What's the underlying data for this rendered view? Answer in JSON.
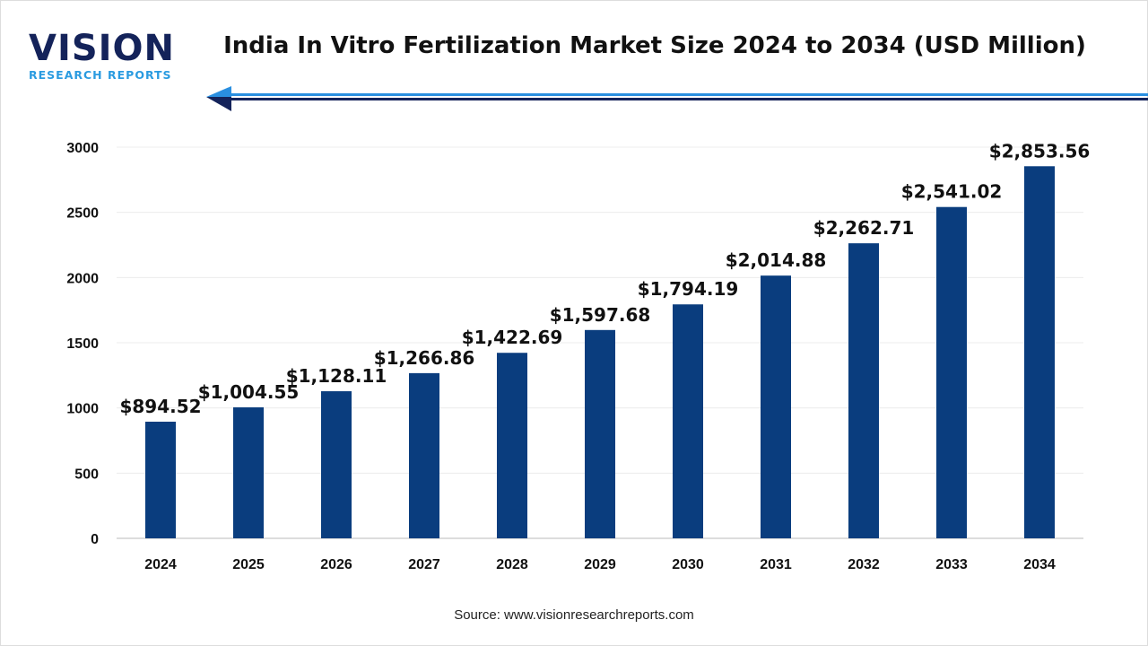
{
  "logo": {
    "main": "VISION",
    "sub": "RESEARCH REPORTS"
  },
  "colors": {
    "bar": "#0a3d7e",
    "accent": "#2a8fe0",
    "logo_dark": "#14235a",
    "grid": "#ececec"
  },
  "source": "Source: www.visionresearchreports.com",
  "chart_data": {
    "type": "bar",
    "title": "India In Vitro Fertilization Market Size 2024 to 2034 (USD Million)",
    "categories": [
      "2024",
      "2025",
      "2026",
      "2027",
      "2028",
      "2029",
      "2030",
      "2031",
      "2032",
      "2033",
      "2034"
    ],
    "values": [
      894.52,
      1004.55,
      1128.11,
      1266.86,
      1422.69,
      1597.68,
      1794.19,
      2014.88,
      2262.71,
      2541.02,
      2853.56
    ],
    "data_labels": [
      "$894.52",
      "$1,004.55",
      "$1,128.11",
      "$1,266.86",
      "$1,422.69",
      "$1,597.68",
      "$1,794.19",
      "$2,014.88",
      "$2,262.71",
      "$2,541.02",
      "$2,853.56"
    ],
    "yticks": [
      "0",
      "500",
      "1000",
      "1500",
      "2000",
      "2500",
      "3000"
    ],
    "ylim": [
      0,
      3000
    ],
    "grid": true,
    "legend": "none"
  }
}
